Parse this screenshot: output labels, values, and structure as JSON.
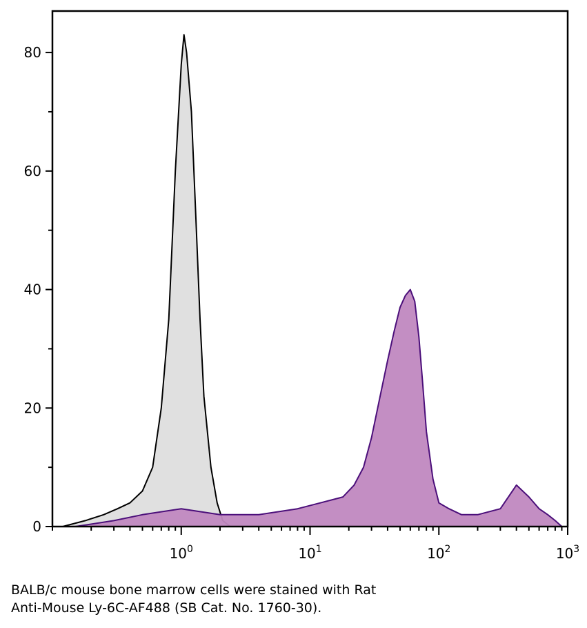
{
  "chart_data": {
    "type": "area",
    "x_scale": "log",
    "xlim": [
      0.1,
      1000
    ],
    "ylim": [
      0,
      87
    ],
    "x_ticks": [
      {
        "base": "10",
        "exp": "0",
        "value": 1
      },
      {
        "base": "10",
        "exp": "1",
        "value": 10
      },
      {
        "base": "10",
        "exp": "2",
        "value": 100
      },
      {
        "base": "10",
        "exp": "3",
        "value": 1000
      }
    ],
    "y_ticks": [
      0,
      20,
      40,
      60,
      80
    ],
    "grid": false,
    "series": [
      {
        "role": "isotype-control",
        "fill": "#e0e0e0",
        "stroke": "#000000",
        "x": [
          0.12,
          0.18,
          0.25,
          0.32,
          0.4,
          0.5,
          0.6,
          0.7,
          0.8,
          0.9,
          1.0,
          1.05,
          1.1,
          1.2,
          1.3,
          1.4,
          1.5,
          1.7,
          1.9,
          2.1,
          2.4
        ],
        "y": [
          0,
          1,
          2,
          3,
          4,
          6,
          10,
          20,
          35,
          60,
          78,
          83,
          80,
          70,
          52,
          35,
          22,
          10,
          4,
          1,
          0
        ]
      },
      {
        "role": "Ly-6C-AF488",
        "fill": "#c088c0",
        "stroke": "#4b0f7a",
        "x": [
          0.15,
          0.3,
          0.5,
          1,
          2,
          4,
          8,
          12,
          18,
          22,
          26,
          30,
          35,
          40,
          45,
          50,
          55,
          60,
          65,
          70,
          75,
          80,
          90,
          100,
          120,
          150,
          200,
          300,
          400,
          500,
          600,
          700,
          800,
          900
        ],
        "y": [
          0,
          1,
          2,
          3,
          2,
          2,
          3,
          4,
          5,
          7,
          10,
          15,
          22,
          28,
          33,
          37,
          39,
          40,
          38,
          32,
          24,
          16,
          8,
          4,
          3,
          2,
          2,
          3,
          7,
          5,
          3,
          2,
          1,
          0
        ]
      }
    ]
  },
  "caption": {
    "line1": "BALB/c mouse bone marrow cells were stained with Rat",
    "line2": "Anti-Mouse Ly-6C-AF488 (SB Cat. No. 1760-30)."
  }
}
